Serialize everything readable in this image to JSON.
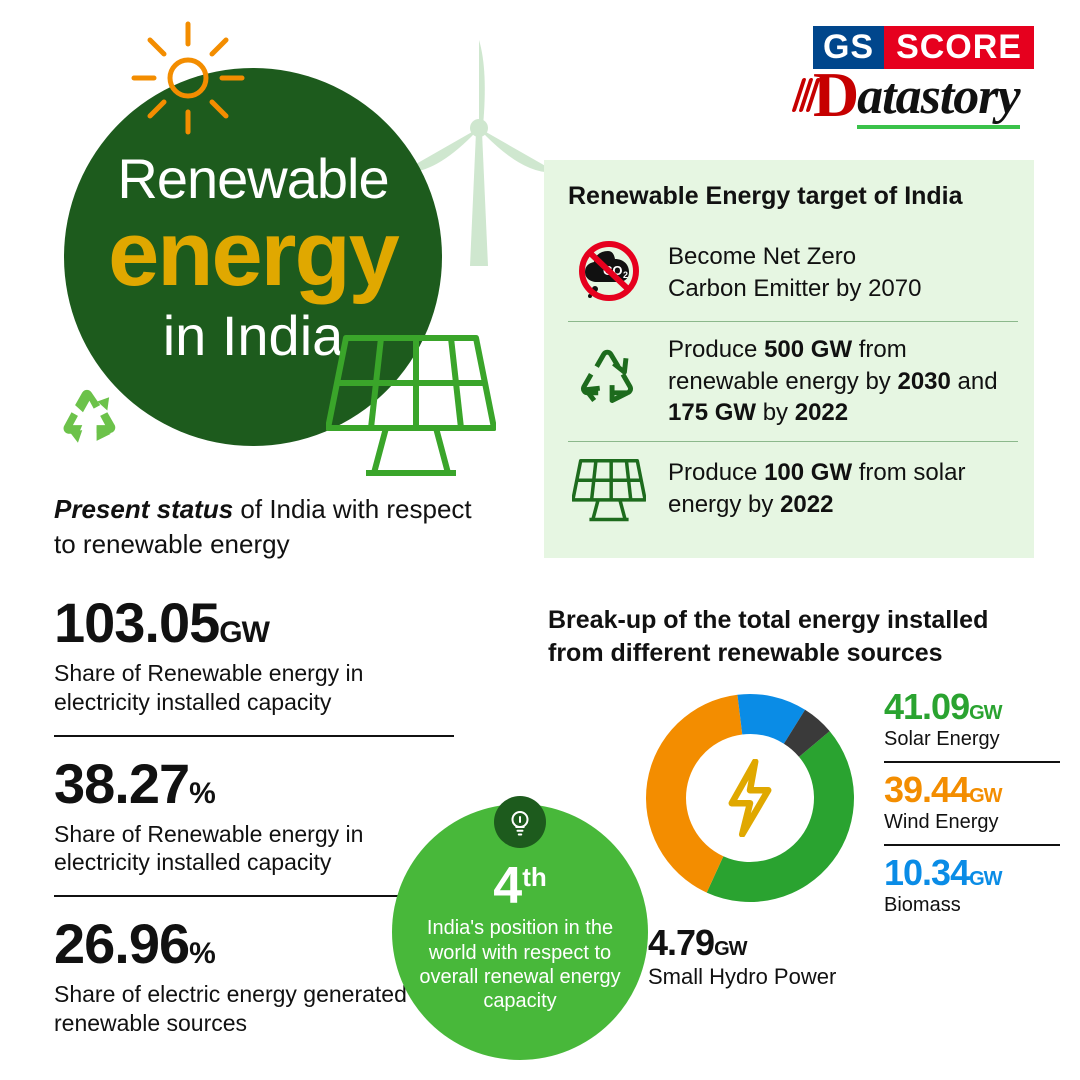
{
  "logo": {
    "gs": "GS",
    "score": "SCORE",
    "d": "D",
    "atastory": "atastory"
  },
  "hero": {
    "line1": "Renewable",
    "line2": "energy",
    "line3": "in India"
  },
  "targets": {
    "title": "Renewable Energy target of India",
    "items": [
      {
        "pre": "Become Net Zero",
        "mid": "Carbon Emitter by 2070"
      },
      {
        "txt1": "Produce ",
        "b1": "500 GW",
        "txt2": " from renewable energy by ",
        "b2": "2030",
        "txt3": " and ",
        "b3": "175 GW",
        "txt4": " by ",
        "b4": "2022"
      },
      {
        "txt1": "Produce ",
        "b1": "100 GW",
        "txt2": " from solar energy by ",
        "b2": "2022"
      }
    ]
  },
  "present": {
    "head_i": "Present status",
    "head_rest": " of India with respect to renewable energy",
    "stats": [
      {
        "num": "103.05",
        "unit": "GW",
        "sub": "Share of Renewable energy in electricity installed capacity"
      },
      {
        "num": "38.27",
        "unit": "%",
        "sub": "Share of Renewable energy in electricity installed capacity"
      },
      {
        "num": "26.96",
        "unit": "%",
        "sub": "Share of electric energy generated by renewable sources"
      }
    ]
  },
  "rank": {
    "num": "4",
    "ord": "th",
    "text": "India's position in the world with respect to overall renewal energy capacity"
  },
  "breakup": {
    "title": "Break-up of the total energy installed from different renewable sources",
    "items": [
      {
        "num": "41.09",
        "unit": "GW",
        "label": "Solar Energy",
        "color": "#2aa330"
      },
      {
        "num": "39.44",
        "unit": "GW",
        "label": "Wind Energy",
        "color": "#f38d00"
      },
      {
        "num": "10.34",
        "unit": "GW",
        "label": "Biomass",
        "color": "#0a8ce6"
      }
    ],
    "hydro": {
      "num": "4.79",
      "unit": "GW",
      "label": "Small Hydro Power",
      "color": "#111111"
    },
    "donut": {
      "segments": [
        {
          "color": "#2aa330",
          "pct": 42.9
        },
        {
          "color": "#f38d00",
          "pct": 41.2
        },
        {
          "color": "#0a8ce6",
          "pct": 10.8
        },
        {
          "color": "#3a3a3a",
          "pct": 5.0
        }
      ],
      "start_angle_deg": 320
    }
  },
  "colors": {
    "dark_green": "#1d5b1d",
    "bright_green": "#48b83a",
    "panel_bg": "#e6f6e2",
    "orange": "#f38d00",
    "blue": "#0a8ce6",
    "yellow": "#e0a800"
  }
}
